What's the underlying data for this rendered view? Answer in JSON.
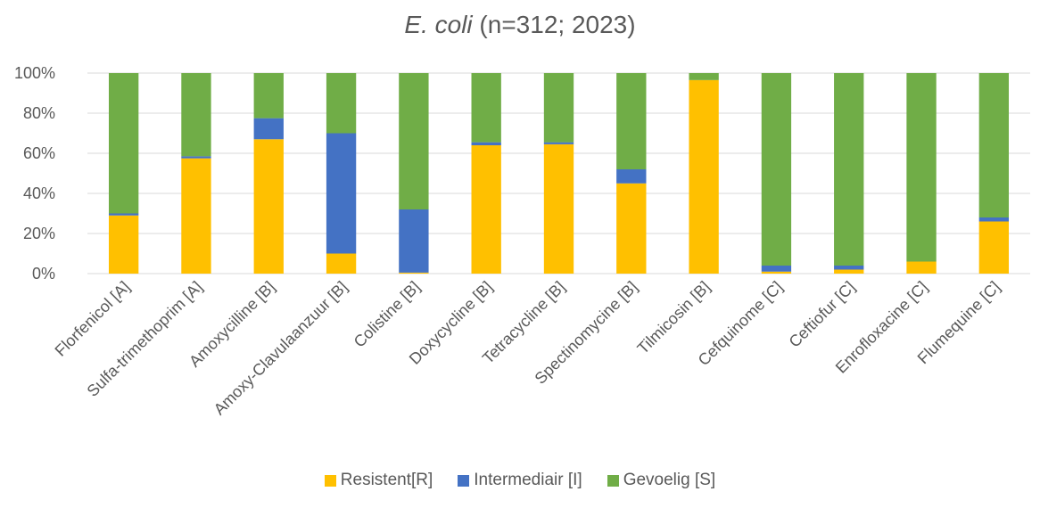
{
  "chart_data": {
    "type": "bar",
    "stacked": true,
    "title_italic": "E. coli",
    "title_rest": " (n=312; 2023)",
    "xlabel": "",
    "ylabel": "",
    "ylim": [
      0,
      100
    ],
    "y_ticks": [
      "0%",
      "20%",
      "40%",
      "60%",
      "80%",
      "100%"
    ],
    "grid": true,
    "legend_position": "bottom",
    "categories": [
      "Florfenicol [A]",
      "Sulfa-trimethoprim [A]",
      "Amoxycilline  [B]",
      "Amoxy-Clavulaanzuur [B]",
      "Colistine [B]",
      "Doxycycline [B]",
      "Tetracycline [B]",
      "Spectinomycine [B]",
      "Tilmicosin [B]",
      "Cefquinome [C]",
      "Ceftiofur [C]",
      "Enrofloxacine [C]",
      "Flumequine [C]"
    ],
    "series": [
      {
        "name": "Resistent[R]",
        "color": "#FFC000",
        "values": [
          29,
          57.5,
          67,
          10,
          0.5,
          64,
          64.5,
          45,
          96.5,
          1,
          2,
          6,
          26
        ]
      },
      {
        "name": "Intermediair [I]",
        "color": "#4472C4",
        "values": [
          1,
          1,
          10.5,
          60,
          31.5,
          1.5,
          1,
          7,
          0,
          3,
          2,
          0,
          2
        ]
      },
      {
        "name": "Gevoelig [S]",
        "color": "#70AD47",
        "values": [
          70,
          41.5,
          22.5,
          30,
          68,
          34.5,
          34.5,
          48,
          3.5,
          96,
          96,
          94,
          72
        ]
      }
    ]
  }
}
